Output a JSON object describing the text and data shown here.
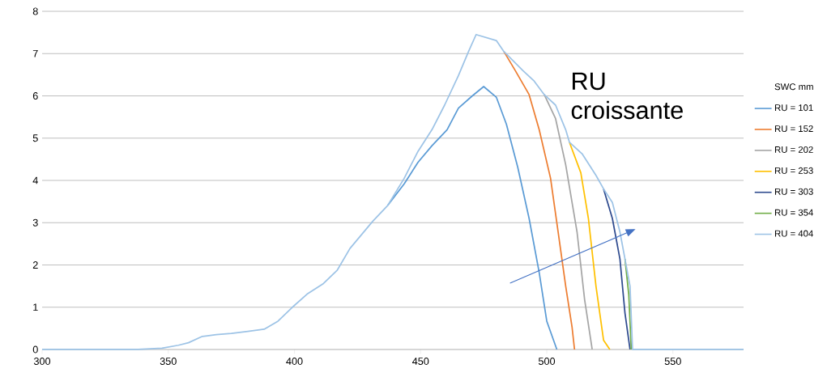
{
  "chart_data": {
    "type": "line",
    "legend_title": "SWC mm",
    "legend": "right",
    "grid": "y",
    "marker": "none",
    "line_style": "solid",
    "xlim": [
      300,
      578
    ],
    "xticks": [
      300,
      350,
      400,
      450,
      500,
      550
    ],
    "ylim": [
      0,
      8
    ],
    "yticks": [
      0,
      1,
      2,
      3,
      4,
      5,
      6,
      7,
      8
    ],
    "annotations": [
      "RU croissante"
    ],
    "series": [
      {
        "name": "RU = 101",
        "color": "#5b9bd5",
        "x": [
          437,
          443.5,
          449,
          454.5,
          460.5,
          465,
          470.5,
          475,
          480,
          484,
          488.5,
          493,
          497,
          500,
          504
        ],
        "values": [
          3.41,
          3.92,
          4.43,
          4.82,
          5.2,
          5.71,
          6.0,
          6.22,
          5.97,
          5.33,
          4.31,
          3.1,
          1.82,
          0.67,
          0
        ]
      },
      {
        "name": "RU = 152",
        "color": "#ed7d31",
        "x": [
          483,
          487.5,
          493,
          497,
          501.5,
          504.5,
          507.5,
          510,
          511
        ],
        "values": [
          7.05,
          6.6,
          6.03,
          5.2,
          4.05,
          2.78,
          1.5,
          0.54,
          0
        ]
      },
      {
        "name": "RU = 202",
        "color": "#a5a5a5",
        "x": [
          499,
          503.5,
          507.5,
          512,
          515,
          518
        ],
        "values": [
          6.03,
          5.46,
          4.37,
          2.78,
          1.18,
          0
        ]
      },
      {
        "name": "RU = 253",
        "color": "#ffc000",
        "x": [
          509,
          513.5,
          516.5,
          519.5,
          522.5,
          525
        ],
        "values": [
          4.9,
          4.18,
          3.1,
          1.5,
          0.22,
          0
        ]
      },
      {
        "name": "RU = 303",
        "color": "#2f4b8f",
        "x": [
          522.5,
          526,
          529,
          531,
          533
        ],
        "values": [
          3.8,
          3.1,
          2.14,
          0.86,
          0
        ]
      },
      {
        "name": "RU = 354",
        "color": "#70ad47",
        "x": [
          531,
          532.5,
          533.5
        ],
        "values": [
          2.14,
          1.3,
          0
        ]
      },
      {
        "name": "RU = 404",
        "color": "#9dc3e6",
        "x": [
          300,
          338,
          347.5,
          354,
          358,
          363.5,
          369,
          375,
          381.5,
          388,
          393.5,
          399,
          405,
          411.5,
          417,
          422,
          431,
          437,
          443.5,
          449,
          454.5,
          459.5,
          465,
          469,
          472,
          480,
          483,
          490.5,
          495,
          499,
          503.5,
          507.5,
          509,
          514,
          519.5,
          522.5,
          526,
          529,
          531,
          533,
          534,
          578
        ],
        "values": [
          0,
          0,
          0.03,
          0.1,
          0.16,
          0.31,
          0.35,
          0.38,
          0.43,
          0.48,
          0.67,
          0.99,
          1.31,
          1.56,
          1.88,
          2.39,
          3.03,
          3.41,
          4.05,
          4.69,
          5.2,
          5.78,
          6.48,
          7.05,
          7.45,
          7.31,
          7.05,
          6.6,
          6.35,
          6.03,
          5.78,
          5.2,
          4.9,
          4.63,
          4.12,
          3.8,
          3.48,
          2.78,
          2.14,
          1.5,
          0,
          0
        ]
      }
    ]
  }
}
